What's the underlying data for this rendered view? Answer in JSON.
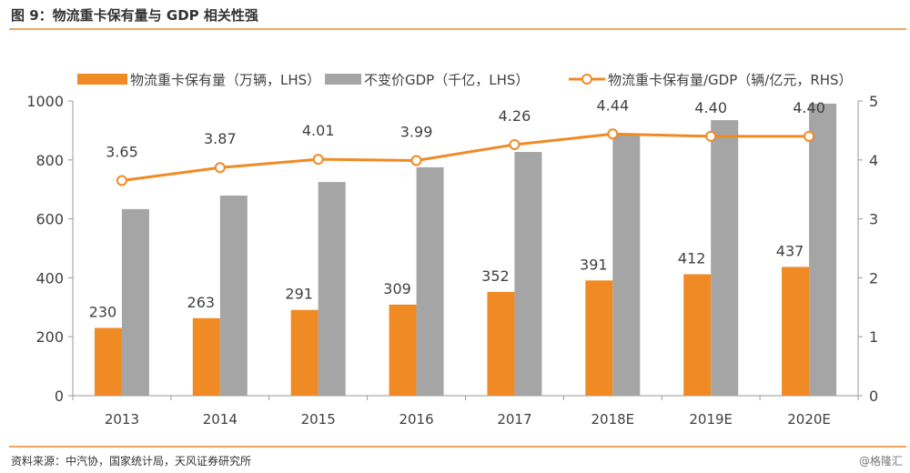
{
  "title": "图 9：物流重卡保有量与 GDP 相关性强",
  "source": "资料来源：中汽协，国家统计局，天风证券研究所",
  "watermark": "@格隆汇",
  "chart_data": {
    "type": "bar+line",
    "categories": [
      "2013",
      "2014",
      "2015",
      "2016",
      "2017",
      "2018E",
      "2019E",
      "2020E"
    ],
    "series": [
      {
        "name": "物流重卡保有量（万辆，LHS）",
        "type": "bar",
        "axis": "left",
        "color": "#f08a24",
        "values": [
          230,
          263,
          291,
          309,
          352,
          391,
          412,
          437
        ],
        "labels": [
          "230",
          "263",
          "291",
          "309",
          "352",
          "391",
          "412",
          "437"
        ]
      },
      {
        "name": "不变价GDP（千亿，LHS）",
        "type": "bar",
        "axis": "left",
        "color": "#a5a5a5",
        "values": [
          633,
          679,
          725,
          775,
          827,
          886,
          935,
          991
        ]
      },
      {
        "name": "物流重卡保有量/GDP（辆/亿元，RHS）",
        "type": "line",
        "axis": "right",
        "color": "#f08a24",
        "values": [
          3.65,
          3.87,
          4.01,
          3.99,
          4.26,
          4.44,
          4.4,
          4.4
        ],
        "labels": [
          "3.65",
          "3.87",
          "4.01",
          "3.99",
          "4.26",
          "4.44",
          "4.40",
          "4.40"
        ]
      }
    ],
    "left_axis": {
      "range": [
        0,
        1000
      ],
      "ticks": [
        "0",
        "200",
        "400",
        "600",
        "800",
        "1000"
      ]
    },
    "right_axis": {
      "range": [
        0,
        5
      ],
      "ticks": [
        "0",
        "1",
        "2",
        "3",
        "4",
        "5"
      ]
    },
    "legend_position": "top",
    "grid": false
  }
}
